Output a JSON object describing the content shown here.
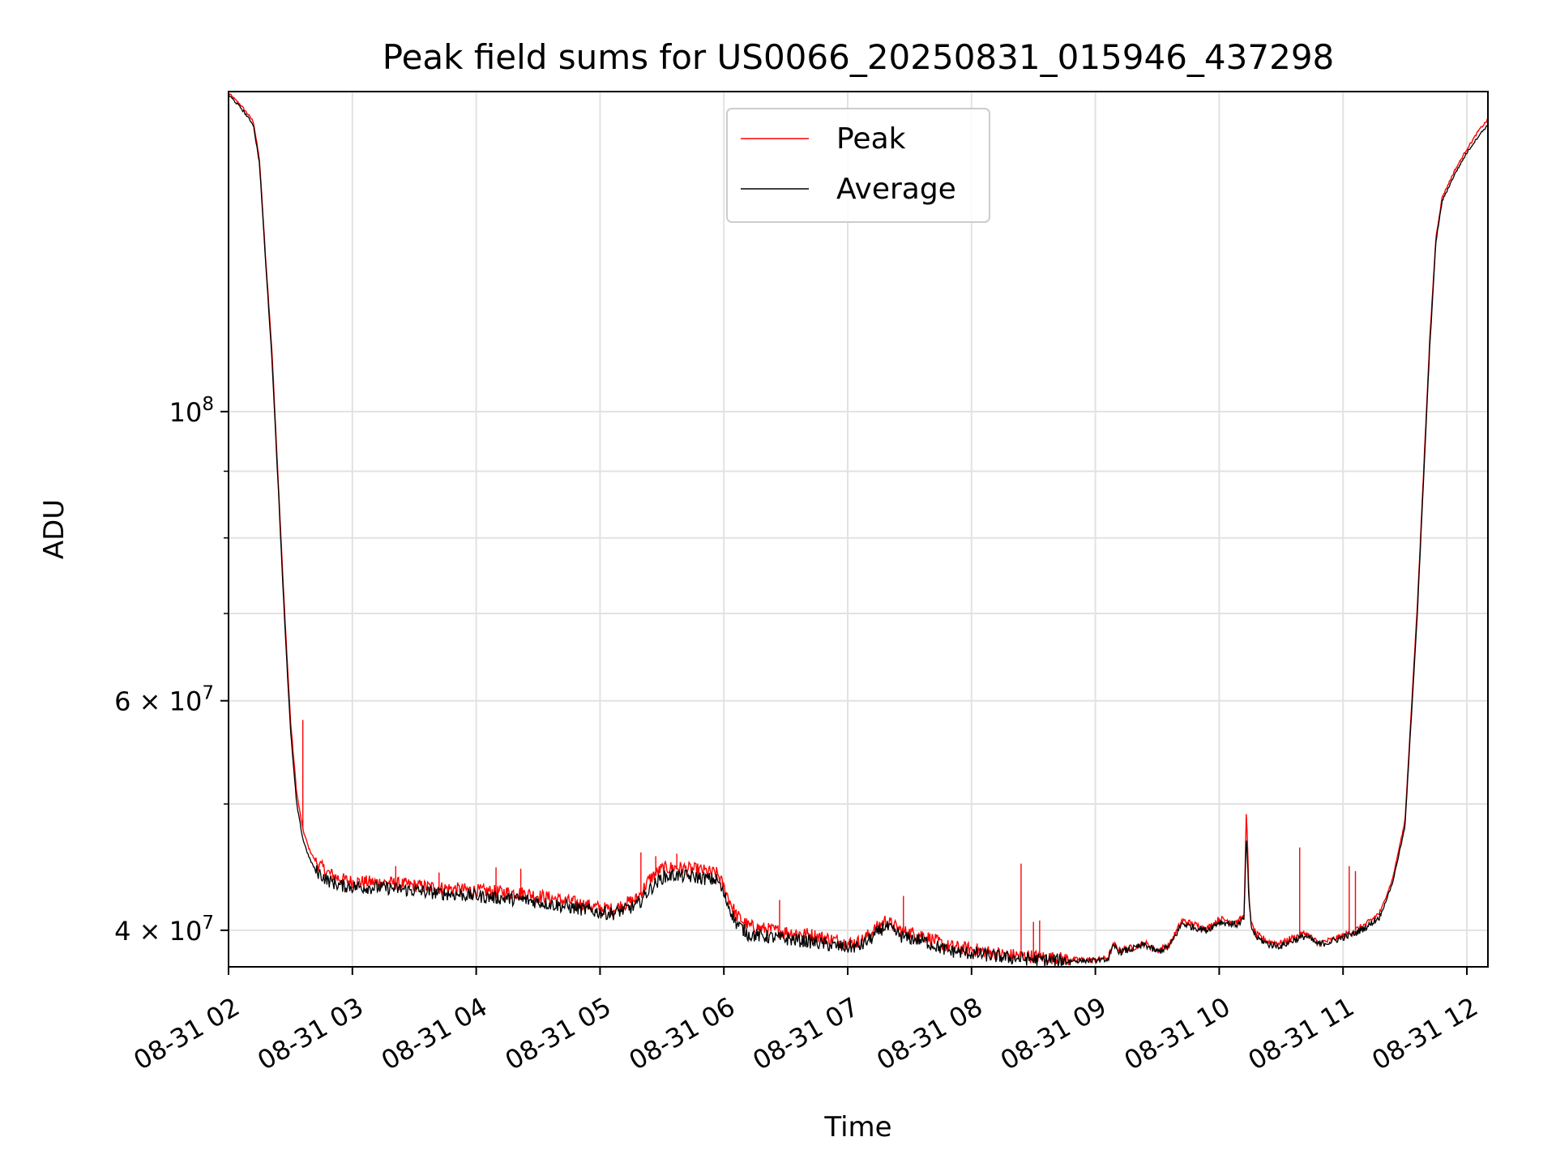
{
  "chart_data": {
    "type": "line",
    "title": "Peak field sums for US0066_20250831_015946_437298",
    "xlabel": "Time",
    "ylabel": "ADU",
    "yscale": "log",
    "x_unit": "hour of 2025-08-31",
    "xlim": [
      2.0,
      12.17
    ],
    "ylim": [
      37500000,
      176000000
    ],
    "grid": true,
    "legend_position": "top-center",
    "x_ticks": [
      {
        "value": 2,
        "label": "08-31 02"
      },
      {
        "value": 3,
        "label": "08-31 03"
      },
      {
        "value": 4,
        "label": "08-31 04"
      },
      {
        "value": 5,
        "label": "08-31 05"
      },
      {
        "value": 6,
        "label": "08-31 06"
      },
      {
        "value": 7,
        "label": "08-31 07"
      },
      {
        "value": 8,
        "label": "08-31 08"
      },
      {
        "value": 9,
        "label": "08-31 09"
      },
      {
        "value": 10,
        "label": "08-31 10"
      },
      {
        "value": 11,
        "label": "08-31 11"
      },
      {
        "value": 12,
        "label": "08-31 12"
      }
    ],
    "y_major_ticks": [
      {
        "value": 100000000,
        "base": "10",
        "exp": "8"
      },
      {
        "value": 60000000,
        "base": "6 × 10",
        "exp": "7"
      },
      {
        "value": 40000000,
        "base": "4 × 10",
        "exp": "7"
      }
    ],
    "y_minor_ticks": [
      50000000,
      70000000,
      80000000,
      90000000
    ],
    "series": [
      {
        "name": "Average",
        "color": "#000000",
        "x": [
          2.0,
          2.1,
          2.2,
          2.25,
          2.3,
          2.35,
          2.4,
          2.45,
          2.5,
          2.55,
          2.6,
          2.65,
          2.7,
          2.8,
          2.9,
          3.0,
          3.3,
          3.6,
          4.0,
          4.4,
          4.8,
          5.0,
          5.1,
          5.3,
          5.4,
          5.5,
          5.6,
          5.8,
          5.95,
          6.1,
          6.2,
          6.4,
          6.7,
          6.9,
          7.0,
          7.1,
          7.2,
          7.3,
          7.45,
          7.6,
          7.8,
          8.0,
          8.2,
          8.3,
          8.5,
          8.8,
          9.0,
          9.1,
          9.15,
          9.2,
          9.3,
          9.4,
          9.5,
          9.6,
          9.7,
          9.8,
          9.9,
          10.0,
          10.15,
          10.2,
          10.22,
          10.24,
          10.26,
          10.3,
          10.4,
          10.5,
          10.6,
          10.7,
          10.8,
          10.9,
          11.0,
          11.1,
          11.2,
          11.3,
          11.4,
          11.5,
          11.6,
          11.7,
          11.75,
          11.8,
          11.9,
          12.0,
          12.1,
          12.17
        ],
        "values": [
          175000000,
          171000000,
          166000000,
          155000000,
          130000000,
          110000000,
          88000000,
          70000000,
          57000000,
          50000000,
          47000000,
          45500000,
          44500000,
          43700000,
          43300000,
          43200000,
          43100000,
          42800000,
          42500000,
          42200000,
          41600000,
          41300000,
          41200000,
          41800000,
          43000000,
          43900000,
          44100000,
          43900000,
          43700000,
          40500000,
          39700000,
          39500000,
          39200000,
          38900000,
          38800000,
          38900000,
          39500000,
          40300000,
          39500000,
          39300000,
          38600000,
          38400000,
          38200000,
          38100000,
          38000000,
          37900000,
          37900000,
          38000000,
          38900000,
          38500000,
          38700000,
          39000000,
          38500000,
          38900000,
          40500000,
          40200000,
          40000000,
          40600000,
          40400000,
          40800000,
          47500000,
          42000000,
          40200000,
          39500000,
          39000000,
          38900000,
          39300000,
          39600000,
          39000000,
          39200000,
          39500000,
          39800000,
          40300000,
          41000000,
          43500000,
          48000000,
          70000000,
          112000000,
          135000000,
          145000000,
          152000000,
          158000000,
          163000000,
          166000000
        ]
      },
      {
        "name": "Peak",
        "color": "#ff0000",
        "x": [
          2.0,
          2.1,
          2.2,
          2.25,
          2.3,
          2.35,
          2.4,
          2.45,
          2.5,
          2.55,
          2.6,
          2.65,
          2.7,
          2.8,
          2.9,
          3.0,
          3.3,
          3.6,
          4.0,
          4.4,
          4.8,
          5.0,
          5.1,
          5.3,
          5.4,
          5.5,
          5.6,
          5.8,
          5.95,
          6.1,
          6.2,
          6.4,
          6.7,
          6.9,
          7.0,
          7.1,
          7.2,
          7.3,
          7.45,
          7.6,
          7.8,
          8.0,
          8.2,
          8.3,
          8.5,
          8.8,
          9.0,
          9.1,
          9.15,
          9.2,
          9.3,
          9.4,
          9.5,
          9.6,
          9.7,
          9.8,
          9.9,
          10.0,
          10.15,
          10.2,
          10.22,
          10.24,
          10.26,
          10.3,
          10.4,
          10.5,
          10.6,
          10.7,
          10.8,
          10.9,
          11.0,
          11.1,
          11.2,
          11.3,
          11.4,
          11.5,
          11.6,
          11.7,
          11.75,
          11.8,
          11.9,
          12.0,
          12.1,
          12.17
        ],
        "values": [
          175500000,
          171800000,
          167000000,
          156000000,
          131000000,
          111500000,
          89000000,
          71000000,
          58000000,
          51000000,
          47800000,
          46200000,
          45200000,
          44300000,
          43800000,
          43600000,
          43500000,
          43200000,
          42900000,
          42700000,
          42000000,
          41600000,
          41500000,
          42300000,
          43800000,
          44600000,
          44700000,
          44500000,
          44200000,
          41100000,
          40300000,
          40000000,
          39700000,
          39300000,
          39100000,
          39200000,
          39900000,
          40700000,
          39900000,
          39700000,
          38900000,
          38700000,
          38400000,
          38300000,
          38200000,
          38000000,
          38000000,
          38100000,
          39000000,
          38600000,
          38800000,
          39100000,
          38600000,
          39000000,
          40700000,
          40400000,
          40100000,
          40800000,
          40600000,
          41000000,
          49500000,
          42500000,
          40400000,
          39700000,
          39200000,
          39100000,
          39500000,
          39800000,
          39100000,
          39300000,
          39600000,
          40000000,
          40500000,
          41300000,
          43800000,
          48500000,
          71000000,
          113500000,
          136000000,
          146000000,
          153000000,
          159000000,
          164500000,
          167500000
        ]
      }
    ],
    "spikes": [
      {
        "series": "Peak",
        "x": 2.6,
        "value": 58000000
      },
      {
        "series": "Peak",
        "x": 3.35,
        "value": 44800000
      },
      {
        "series": "Peak",
        "x": 3.7,
        "value": 44300000
      },
      {
        "series": "Peak",
        "x": 4.16,
        "value": 44700000
      },
      {
        "series": "Peak",
        "x": 4.36,
        "value": 44600000
      },
      {
        "series": "Peak",
        "x": 5.33,
        "value": 45900000
      },
      {
        "series": "Peak",
        "x": 5.45,
        "value": 45600000
      },
      {
        "series": "Peak",
        "x": 5.62,
        "value": 45800000
      },
      {
        "series": "Peak",
        "x": 6.45,
        "value": 42200000
      },
      {
        "series": "Peak",
        "x": 7.45,
        "value": 42500000
      },
      {
        "series": "Peak",
        "x": 8.4,
        "value": 45000000
      },
      {
        "series": "Peak",
        "x": 8.5,
        "value": 40600000
      },
      {
        "series": "Peak",
        "x": 8.55,
        "value": 40700000
      },
      {
        "series": "Peak",
        "x": 10.65,
        "value": 46300000
      },
      {
        "series": "Peak",
        "x": 11.05,
        "value": 44800000
      },
      {
        "series": "Peak",
        "x": 11.1,
        "value": 44400000
      }
    ]
  }
}
